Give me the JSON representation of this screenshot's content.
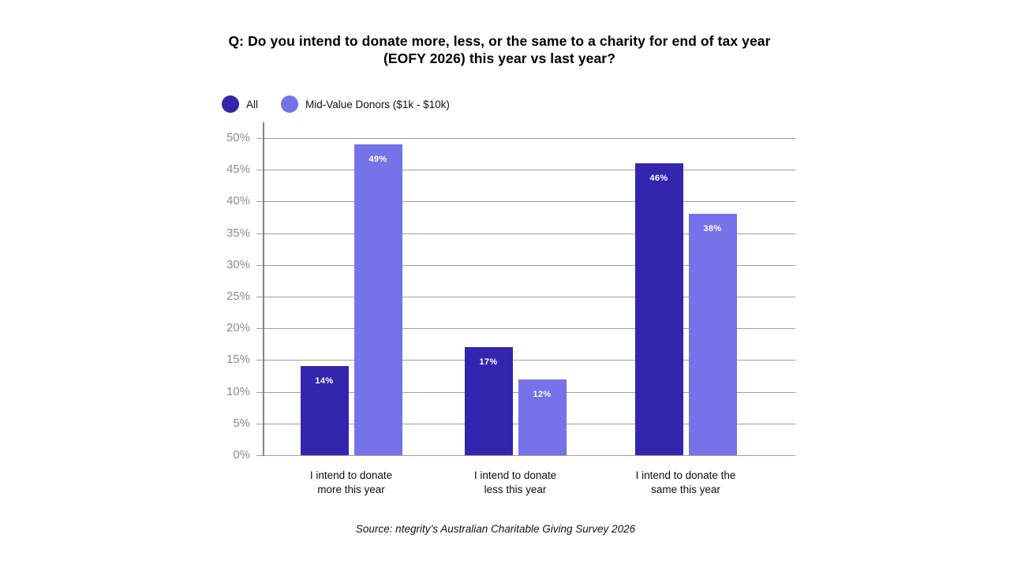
{
  "chart_data": {
    "type": "bar",
    "title": "Q: Do you intend to donate more, less, or the same to a charity for end of tax year\n(EOFY 2026) this year vs last year?",
    "categories": [
      "I intend to donate\nmore this year",
      "I intend to donate\nless this year",
      "I intend to donate the\nsame this year"
    ],
    "series": [
      {
        "name": "All",
        "color": "#3325ae",
        "values": [
          14,
          17,
          46
        ]
      },
      {
        "name": "Mid-Value Donors ($1k - $10k)",
        "color": "#7672e9",
        "values": [
          49,
          12,
          38
        ]
      }
    ],
    "ylim": [
      0,
      50
    ],
    "yticks": [
      0,
      5,
      10,
      15,
      20,
      25,
      30,
      35,
      40,
      45,
      50
    ],
    "ytick_suffix": "%",
    "grid": true,
    "legend_position": "top-left",
    "bar_value_label_suffix": "%",
    "bar_value_label_color": "#ffffff"
  },
  "footer": {
    "source": "Source: ntegrity’s Australian Charitable Giving Survey 2026"
  },
  "colors": {
    "background": "#ffffff",
    "gridline": "#9f9f9f",
    "axis_line": "#848484",
    "tick_label": "#8d8d8d",
    "series_all": "#3325ae",
    "series_mid_value_donors": "#7672e9"
  }
}
